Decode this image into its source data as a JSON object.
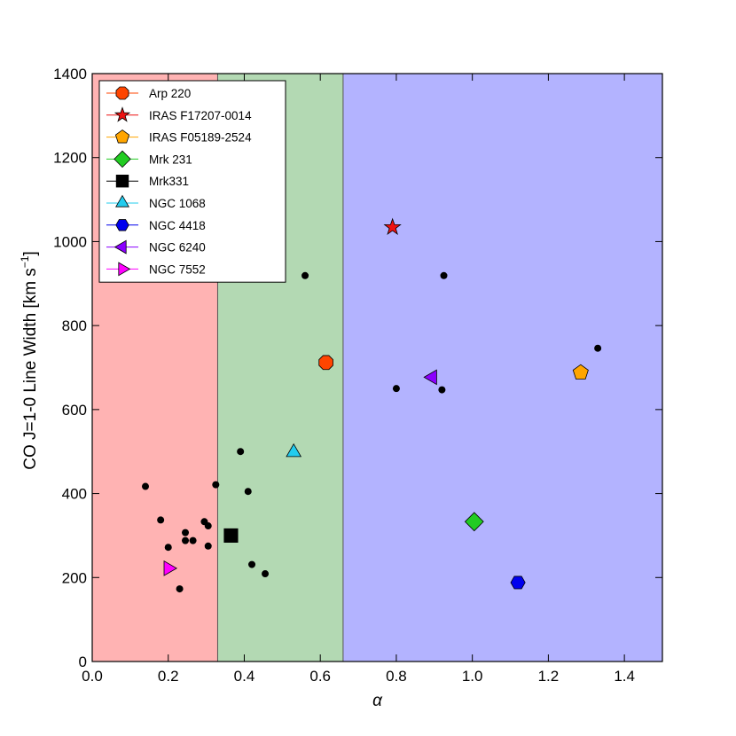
{
  "chart_data": {
    "type": "scatter",
    "title": "",
    "xlabel": "α",
    "ylabel": "CO J=1-0 Line Width [km s",
    "ylabel_sup": "−1",
    "ylabel_end": "]",
    "xlim": [
      0.0,
      1.5
    ],
    "ylim": [
      0,
      1400
    ],
    "xticks": [
      0.0,
      0.2,
      0.4,
      0.6,
      0.8,
      1.0,
      1.2,
      1.4
    ],
    "yticks": [
      0,
      200,
      400,
      600,
      800,
      1000,
      1200,
      1400
    ],
    "xtick_labels": [
      "0.0",
      "0.2",
      "0.4",
      "0.6",
      "0.8",
      "1.0",
      "1.2",
      "1.4"
    ],
    "ytick_labels": [
      "0",
      "200",
      "400",
      "600",
      "800",
      "1000",
      "1200",
      "1400"
    ],
    "grid": false,
    "legend_position": "top-left",
    "bands": [
      {
        "x0": 0.0,
        "x1": 0.33,
        "color": "#ffb3b3"
      },
      {
        "x0": 0.33,
        "x1": 0.66,
        "color": "#b3d9b3"
      },
      {
        "x0": 0.66,
        "x1": 1.5,
        "color": "#b3b3ff"
      }
    ],
    "background_points": [
      {
        "x": 0.14,
        "y": 417
      },
      {
        "x": 0.18,
        "y": 337
      },
      {
        "x": 0.2,
        "y": 272
      },
      {
        "x": 0.23,
        "y": 173
      },
      {
        "x": 0.245,
        "y": 307
      },
      {
        "x": 0.245,
        "y": 288
      },
      {
        "x": 0.265,
        "y": 288
      },
      {
        "x": 0.295,
        "y": 333
      },
      {
        "x": 0.305,
        "y": 323
      },
      {
        "x": 0.305,
        "y": 275
      },
      {
        "x": 0.325,
        "y": 421
      },
      {
        "x": 0.39,
        "y": 500
      },
      {
        "x": 0.41,
        "y": 405
      },
      {
        "x": 0.42,
        "y": 231
      },
      {
        "x": 0.455,
        "y": 209
      },
      {
        "x": 0.56,
        "y": 919
      },
      {
        "x": 0.8,
        "y": 650
      },
      {
        "x": 0.92,
        "y": 647
      },
      {
        "x": 0.925,
        "y": 919
      },
      {
        "x": 1.33,
        "y": 746
      }
    ],
    "series": [
      {
        "name": "Arp 220",
        "x": 0.615,
        "y": 712,
        "marker": "octagon",
        "color": "#ff4500"
      },
      {
        "name": "IRAS F17207-0014",
        "x": 0.79,
        "y": 1034,
        "marker": "star",
        "color": "#ee1111"
      },
      {
        "name": "IRAS F05189-2524",
        "x": 1.285,
        "y": 688,
        "marker": "pentagon",
        "color": "#ffa500"
      },
      {
        "name": "Mrk 231",
        "x": 1.005,
        "y": 333,
        "marker": "diamond",
        "color": "#22cc22"
      },
      {
        "name": "Mrk331",
        "x": 0.365,
        "y": 300,
        "marker": "square",
        "color": "#000000"
      },
      {
        "name": "NGC 1068",
        "x": 0.53,
        "y": 498,
        "marker": "triangle-up",
        "color": "#22ccee"
      },
      {
        "name": "NGC 4418",
        "x": 1.12,
        "y": 188,
        "marker": "hexagon",
        "color": "#0000ee"
      },
      {
        "name": "NGC 6240",
        "x": 0.895,
        "y": 677,
        "marker": "triangle-left",
        "color": "#8b00ff"
      },
      {
        "name": "NGC 7552",
        "x": 0.2,
        "y": 222,
        "marker": "triangle-right",
        "color": "#ff00ff"
      }
    ]
  }
}
